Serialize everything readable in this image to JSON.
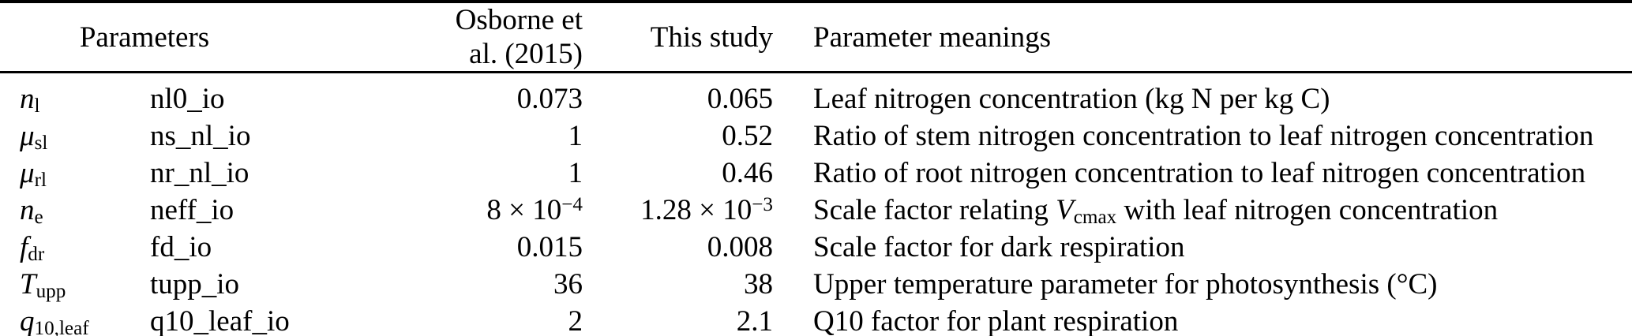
{
  "colors": {
    "text": "#000000",
    "background": "#ffffff",
    "rule": "#000000"
  },
  "table": {
    "headers": {
      "parameters": "Parameters",
      "osborne": "Osborne et al. (2015)",
      "study": "This study",
      "meanings": "Parameter meanings"
    },
    "rows": [
      {
        "symbol": {
          "base": "n",
          "sub": "l"
        },
        "name": "nl0_io",
        "osborne": {
          "text": "0.073"
        },
        "study": {
          "text": "0.065"
        },
        "meaning": {
          "pre": "Leaf nitrogen concentration (kg N per kg C)"
        }
      },
      {
        "symbol": {
          "base": "μ",
          "sub": "sl"
        },
        "name": "ns_nl_io",
        "osborne": {
          "text": "1"
        },
        "study": {
          "text": "0.52"
        },
        "meaning": {
          "pre": "Ratio of stem nitrogen concentration to leaf nitrogen concentration"
        }
      },
      {
        "symbol": {
          "base": "μ",
          "sub": "rl"
        },
        "name": "nr_nl_io",
        "osborne": {
          "text": "1"
        },
        "study": {
          "text": "0.46"
        },
        "meaning": {
          "pre": "Ratio of root nitrogen concentration to leaf nitrogen concentration"
        }
      },
      {
        "symbol": {
          "base": "n",
          "sub": "e"
        },
        "name": "neff_io",
        "osborne": {
          "text": "8 × 10",
          "sup": "−4"
        },
        "study": {
          "text": "1.28 × 10",
          "sup": "−3"
        },
        "meaning": {
          "pre": "Scale factor relating ",
          "math_base": "V",
          "math_sub": "cmax",
          "post": " with leaf nitrogen concentration"
        }
      },
      {
        "symbol": {
          "base": "f",
          "sub": "dr"
        },
        "name": "fd_io",
        "osborne": {
          "text": "0.015"
        },
        "study": {
          "text": "0.008"
        },
        "meaning": {
          "pre": "Scale factor for dark respiration"
        }
      },
      {
        "symbol": {
          "base": "T",
          "sub": "upp"
        },
        "name": "tupp_io",
        "osborne": {
          "text": "36"
        },
        "study": {
          "text": "38"
        },
        "meaning": {
          "pre": "Upper temperature parameter for photosynthesis (°C)"
        }
      },
      {
        "symbol": {
          "base": "q",
          "sub": "10,leaf"
        },
        "name": "q10_leaf_io",
        "osborne": {
          "text": "2"
        },
        "study": {
          "text": "2.1"
        },
        "meaning": {
          "pre": "Q10 factor for plant respiration"
        }
      }
    ]
  }
}
